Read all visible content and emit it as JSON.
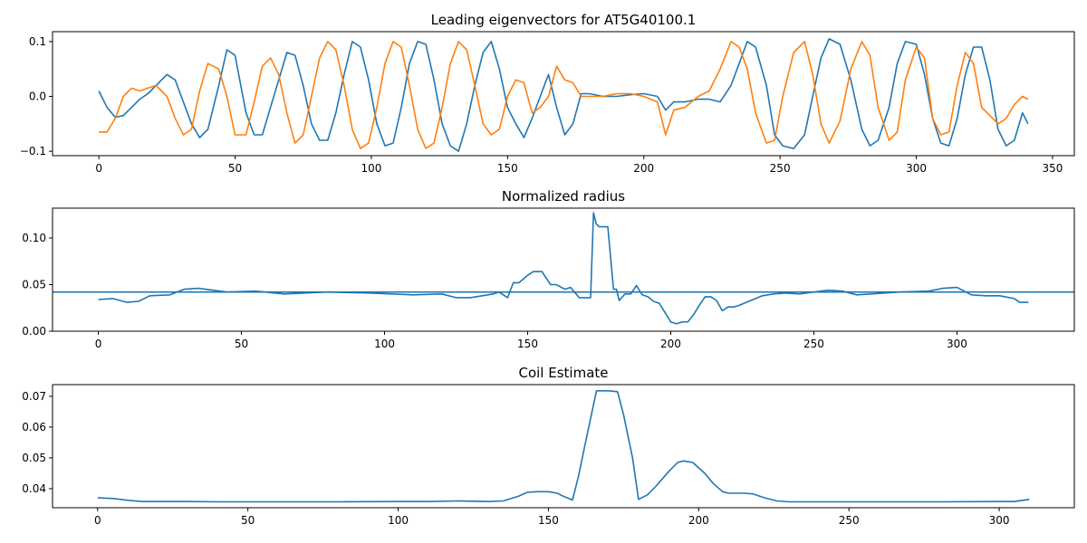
{
  "chart_data": [
    {
      "type": "line",
      "title": "Leading eigenvectors for AT5G40100.1",
      "xlabel": "",
      "ylabel": "",
      "xlim": [
        -17,
        358
      ],
      "ylim": [
        -0.108,
        0.118
      ],
      "xticks": [
        0,
        50,
        100,
        150,
        200,
        250,
        300,
        350
      ],
      "yticks": [
        -0.1,
        0.0,
        0.1
      ],
      "ytick_labels": [
        "−0.1",
        "0.0",
        "0.1"
      ],
      "grid": false,
      "series": [
        {
          "color": "#1f77b4",
          "x": [
            0,
            3,
            6,
            9,
            12,
            15,
            18,
            21,
            25,
            28,
            31,
            34,
            37,
            40,
            44,
            47,
            50,
            54,
            57,
            60,
            63,
            66,
            69,
            72,
            75,
            78,
            81,
            84,
            87,
            90,
            93,
            96,
            99,
            102,
            105,
            108,
            111,
            114,
            117,
            120,
            123,
            126,
            129,
            132,
            135,
            138,
            141,
            144,
            147,
            150,
            153,
            156,
            159,
            162,
            165,
            168,
            171,
            174,
            177,
            180,
            185,
            190,
            195,
            200,
            205,
            208,
            211,
            215,
            220,
            224,
            228,
            232,
            235,
            238,
            241,
            245,
            248,
            251,
            255,
            259,
            262,
            265,
            268,
            272,
            276,
            280,
            283,
            286,
            290,
            293,
            296,
            300,
            303,
            306,
            309,
            312,
            315,
            318,
            321,
            324,
            327,
            330,
            333,
            336,
            339,
            341
          ],
          "y": [
            0.01,
            -0.02,
            -0.038,
            -0.035,
            -0.02,
            -0.005,
            0.005,
            0.02,
            0.04,
            0.03,
            -0.01,
            -0.05,
            -0.075,
            -0.06,
            0.02,
            0.085,
            0.075,
            -0.03,
            -0.07,
            -0.07,
            -0.02,
            0.03,
            0.08,
            0.075,
            0.02,
            -0.05,
            -0.08,
            -0.08,
            -0.03,
            0.04,
            0.1,
            0.09,
            0.03,
            -0.05,
            -0.09,
            -0.085,
            -0.02,
            0.06,
            0.1,
            0.095,
            0.03,
            -0.05,
            -0.09,
            -0.1,
            -0.05,
            0.02,
            0.08,
            0.1,
            0.05,
            -0.02,
            -0.05,
            -0.075,
            -0.04,
            0.0,
            0.04,
            -0.02,
            -0.07,
            -0.05,
            0.005,
            0.005,
            0.0,
            0.0,
            0.003,
            0.005,
            0.0,
            -0.025,
            -0.01,
            -0.01,
            -0.005,
            -0.005,
            -0.01,
            0.02,
            0.06,
            0.1,
            0.09,
            0.02,
            -0.07,
            -0.09,
            -0.095,
            -0.07,
            0.0,
            0.07,
            0.105,
            0.095,
            0.03,
            -0.06,
            -0.09,
            -0.08,
            -0.02,
            0.06,
            0.1,
            0.095,
            0.04,
            -0.04,
            -0.085,
            -0.09,
            -0.04,
            0.04,
            0.09,
            0.09,
            0.03,
            -0.06,
            -0.09,
            -0.08,
            -0.03,
            -0.05
          ],
          "y_note": ""
        },
        {
          "color": "#ff7f0e",
          "x": [
            0,
            3,
            6,
            9,
            12,
            15,
            18,
            21,
            25,
            28,
            31,
            34,
            37,
            40,
            44,
            47,
            50,
            54,
            57,
            60,
            63,
            66,
            69,
            72,
            75,
            78,
            81,
            84,
            87,
            90,
            93,
            96,
            99,
            102,
            105,
            108,
            111,
            114,
            117,
            120,
            123,
            126,
            129,
            132,
            135,
            138,
            141,
            144,
            147,
            150,
            153,
            156,
            159,
            162,
            165,
            168,
            171,
            174,
            177,
            180,
            185,
            190,
            195,
            200,
            205,
            208,
            211,
            215,
            220,
            224,
            228,
            232,
            235,
            238,
            241,
            245,
            248,
            251,
            255,
            259,
            262,
            265,
            268,
            272,
            276,
            280,
            283,
            286,
            290,
            293,
            296,
            300,
            303,
            306,
            309,
            312,
            315,
            318,
            321,
            324,
            327,
            330,
            333,
            336,
            339,
            341
          ],
          "y": [
            -0.065,
            -0.065,
            -0.04,
            0.0,
            0.015,
            0.01,
            0.015,
            0.02,
            0.0,
            -0.04,
            -0.07,
            -0.06,
            0.01,
            0.06,
            0.05,
            0.0,
            -0.07,
            -0.07,
            -0.01,
            0.055,
            0.07,
            0.04,
            -0.03,
            -0.085,
            -0.07,
            0.0,
            0.07,
            0.1,
            0.085,
            0.02,
            -0.06,
            -0.095,
            -0.085,
            -0.02,
            0.06,
            0.1,
            0.09,
            0.02,
            -0.06,
            -0.095,
            -0.085,
            -0.02,
            0.06,
            0.1,
            0.085,
            0.02,
            -0.05,
            -0.07,
            -0.06,
            0.0,
            0.03,
            0.025,
            -0.03,
            -0.02,
            0.0,
            0.055,
            0.03,
            0.025,
            0.0,
            0.0,
            0.0,
            0.005,
            0.005,
            0.0,
            -0.01,
            -0.07,
            -0.025,
            -0.02,
            0.0,
            0.01,
            0.05,
            0.1,
            0.09,
            0.05,
            -0.03,
            -0.085,
            -0.08,
            0.0,
            0.08,
            0.1,
            0.04,
            -0.05,
            -0.085,
            -0.045,
            0.05,
            0.1,
            0.075,
            -0.02,
            -0.08,
            -0.065,
            0.03,
            0.09,
            0.07,
            -0.04,
            -0.07,
            -0.065,
            0.02,
            0.08,
            0.06,
            -0.02,
            -0.035,
            -0.05,
            -0.04,
            -0.015,
            0.0,
            -0.005
          ],
          "y_note": ""
        }
      ]
    },
    {
      "type": "line",
      "title": "Normalized radius",
      "xlabel": "",
      "ylabel": "",
      "xlim": [
        -16,
        341
      ],
      "ylim": [
        0.0,
        0.132
      ],
      "xticks": [
        0,
        50,
        100,
        150,
        200,
        250,
        300
      ],
      "yticks": [
        0.0,
        0.05,
        0.1
      ],
      "ytick_labels": [
        "0.00",
        "0.05",
        "0.10"
      ],
      "grid": false,
      "hline": 0.042,
      "series": [
        {
          "color": "#1f77b4",
          "x": [
            0,
            5,
            10,
            14,
            18,
            25,
            30,
            35,
            45,
            55,
            65,
            80,
            95,
            110,
            120,
            125,
            130,
            138,
            140,
            143,
            145,
            147,
            150,
            152,
            155,
            158,
            160,
            163,
            165,
            168,
            170,
            172,
            173,
            174,
            175,
            176,
            178,
            180,
            181,
            182,
            184,
            186,
            188,
            190,
            192,
            194,
            196,
            198,
            200,
            202,
            204,
            206,
            208,
            210,
            212,
            214,
            216,
            218,
            220,
            222,
            224,
            228,
            232,
            236,
            240,
            245,
            250,
            255,
            260,
            265,
            270,
            280,
            290,
            295,
            300,
            305,
            310,
            315,
            320,
            322,
            325
          ],
          "y": [
            0.034,
            0.035,
            0.031,
            0.032,
            0.038,
            0.039,
            0.045,
            0.046,
            0.042,
            0.043,
            0.04,
            0.042,
            0.041,
            0.039,
            0.04,
            0.036,
            0.036,
            0.04,
            0.042,
            0.036,
            0.052,
            0.052,
            0.06,
            0.064,
            0.064,
            0.05,
            0.05,
            0.045,
            0.047,
            0.036,
            0.036,
            0.036,
            0.127,
            0.115,
            0.112,
            0.112,
            0.112,
            0.045,
            0.045,
            0.033,
            0.04,
            0.04,
            0.049,
            0.039,
            0.037,
            0.032,
            0.03,
            0.02,
            0.01,
            0.008,
            0.01,
            0.01,
            0.018,
            0.028,
            0.037,
            0.037,
            0.033,
            0.022,
            0.026,
            0.026,
            0.028,
            0.033,
            0.038,
            0.04,
            0.041,
            0.04,
            0.042,
            0.044,
            0.043,
            0.039,
            0.04,
            0.042,
            0.043,
            0.046,
            0.047,
            0.039,
            0.038,
            0.038,
            0.035,
            0.031,
            0.031
          ],
          "y_note": ""
        }
      ]
    },
    {
      "type": "line",
      "title": "Coil Estimate",
      "xlabel": "",
      "ylabel": "",
      "xlim": [
        -15,
        325
      ],
      "ylim": [
        0.0338,
        0.0738
      ],
      "xticks": [
        0,
        50,
        100,
        150,
        200,
        250,
        300
      ],
      "yticks": [
        0.04,
        0.05,
        0.06,
        0.07
      ],
      "ytick_labels": [
        "0.04",
        "0.05",
        "0.06",
        "0.07"
      ],
      "grid": false,
      "series": [
        {
          "color": "#1f77b4",
          "x": [
            0,
            5,
            10,
            15,
            20,
            30,
            40,
            60,
            80,
            100,
            110,
            120,
            130,
            135,
            140,
            143,
            146,
            150,
            153,
            155,
            158,
            160,
            163,
            166,
            170,
            173,
            175,
            178,
            180,
            183,
            186,
            190,
            193,
            195,
            198,
            202,
            205,
            208,
            210,
            215,
            218,
            222,
            226,
            230,
            240,
            260,
            280,
            300,
            305,
            310
          ],
          "y": [
            0.037,
            0.0368,
            0.0362,
            0.0358,
            0.0358,
            0.0358,
            0.0357,
            0.0357,
            0.0357,
            0.0358,
            0.0358,
            0.036,
            0.0358,
            0.036,
            0.0375,
            0.0388,
            0.039,
            0.039,
            0.0385,
            0.0375,
            0.0363,
            0.044,
            0.058,
            0.0718,
            0.0718,
            0.0715,
            0.064,
            0.05,
            0.0365,
            0.038,
            0.041,
            0.0455,
            0.0485,
            0.049,
            0.0485,
            0.045,
            0.0415,
            0.039,
            0.0385,
            0.0385,
            0.0383,
            0.037,
            0.036,
            0.0357,
            0.0357,
            0.0357,
            0.0357,
            0.0358,
            0.0358,
            0.0365
          ],
          "y_note": ""
        }
      ]
    }
  ]
}
